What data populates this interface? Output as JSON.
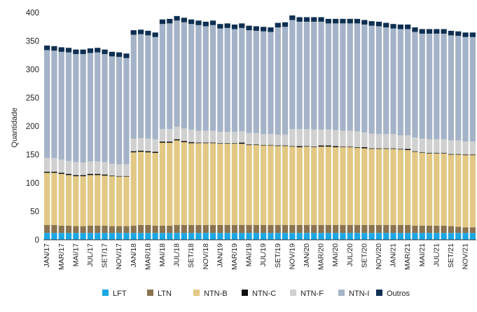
{
  "chart_data": {
    "type": "bar",
    "stacked": true,
    "title": "",
    "xlabel": "",
    "ylabel": "Quantidade",
    "ylim": [
      0,
      400
    ],
    "yticks": [
      0,
      50,
      100,
      150,
      200,
      250,
      300,
      350,
      400
    ],
    "grid": false,
    "legend_position": "bottom",
    "categories": [
      "JAN/17",
      "FEV/17",
      "MAR/17",
      "ABR/17",
      "MAI/17",
      "JUN/17",
      "JUL/17",
      "AGO/17",
      "SET/17",
      "OUT/17",
      "NOV/17",
      "DEZ/17",
      "JAN/18",
      "FEV/18",
      "MAR/18",
      "ABR/18",
      "MAI/18",
      "JUN/18",
      "JUL/18",
      "AGO/18",
      "SET/18",
      "OUT/18",
      "NOV/18",
      "DEZ/18",
      "JAN/19",
      "FEV/19",
      "MAR/19",
      "ABR/19",
      "MAI/19",
      "JUN/19",
      "JUL/19",
      "AGO/19",
      "SET/19",
      "OUT/19",
      "NOV/19",
      "DEZ/19",
      "JAN/20",
      "FEV/20",
      "MAR/20",
      "ABR/20",
      "MAI/20",
      "JUN/20",
      "JUL/20",
      "AGO/20",
      "SET/20",
      "OUT/20",
      "NOV/20",
      "DEZ/20",
      "JAN/21",
      "FEV/21",
      "MAR/21",
      "ABR/21",
      "MAI/21",
      "JUN/21",
      "JUL/21",
      "AGO/21",
      "SET/21",
      "OUT/21",
      "NOV/21",
      "DEZ/21"
    ],
    "visible_x_labels": [
      "JAN/17",
      "MAR/17",
      "MAI/17",
      "JUL/17",
      "SET/17",
      "NOV/17",
      "JAN/18",
      "MAR/18",
      "MAI/18",
      "JUL/18",
      "SET/18",
      "NOV/18",
      "JAN/19",
      "MAR/19",
      "MAI/19",
      "JUL/19",
      "SET/19",
      "NOV/19",
      "JAN/20",
      "MAR/20",
      "MAI/20",
      "JUL/20",
      "SET/20",
      "NOV/20",
      "JAN/21",
      "MAR/21",
      "MAI/21",
      "JUL/21",
      "SET/21",
      "NOV/21"
    ],
    "series": [
      {
        "name": "LFT",
        "color": "#1aa7e6",
        "values": [
          12,
          12,
          12,
          12,
          12,
          12,
          12,
          12,
          12,
          12,
          12,
          12,
          12,
          12,
          12,
          12,
          12,
          12,
          12,
          12,
          12,
          12,
          12,
          12,
          12,
          12,
          12,
          12,
          12,
          12,
          12,
          12,
          12,
          12,
          12,
          12,
          12,
          12,
          12,
          12,
          12,
          12,
          12,
          12,
          12,
          12,
          12,
          12,
          12,
          12,
          12,
          12,
          12,
          12,
          12,
          12,
          12,
          12,
          12,
          12
        ]
      },
      {
        "name": "LTN",
        "color": "#8a7350",
        "values": [
          14,
          14,
          13,
          13,
          12,
          12,
          13,
          13,
          13,
          12,
          12,
          12,
          13,
          14,
          14,
          13,
          13,
          13,
          14,
          14,
          14,
          14,
          14,
          14,
          14,
          14,
          14,
          14,
          14,
          14,
          14,
          14,
          14,
          14,
          14,
          14,
          14,
          14,
          14,
          14,
          14,
          14,
          14,
          14,
          14,
          14,
          14,
          14,
          14,
          14,
          14,
          13,
          13,
          13,
          13,
          13,
          12,
          11,
          10,
          10
        ]
      },
      {
        "name": "NTN-B",
        "color": "#e2c884",
        "values": [
          92,
          92,
          91,
          89,
          88,
          88,
          89,
          89,
          88,
          88,
          87,
          87,
          129,
          129,
          128,
          128,
          146,
          146,
          149,
          146,
          144,
          144,
          144,
          144,
          143,
          143,
          143,
          143,
          141,
          141,
          140,
          140,
          139,
          139,
          138,
          137,
          138,
          137,
          138,
          138,
          137,
          137,
          137,
          136,
          135,
          134,
          134,
          134,
          134,
          133,
          132,
          130,
          128,
          127,
          127,
          127,
          126,
          127,
          127,
          127
        ]
      },
      {
        "name": "NTN-C",
        "color": "#111111",
        "values": [
          2,
          2,
          2,
          2,
          2,
          2,
          2,
          2,
          2,
          1,
          1,
          1,
          2,
          2,
          2,
          2,
          2,
          2,
          2,
          2,
          2,
          1,
          1,
          1,
          1,
          1,
          1,
          2,
          1,
          1,
          1,
          1,
          1,
          1,
          1,
          2,
          1,
          1,
          2,
          2,
          2,
          1,
          1,
          1,
          2,
          1,
          1,
          1,
          1,
          1,
          2,
          1,
          1,
          1,
          1,
          1,
          1,
          1,
          1,
          1
        ]
      },
      {
        "name": "NTN-F",
        "color": "#d0d0d0",
        "values": [
          24,
          24,
          23,
          23,
          23,
          22,
          22,
          22,
          22,
          21,
          21,
          21,
          22,
          22,
          22,
          22,
          22,
          22,
          22,
          22,
          22,
          21,
          21,
          21,
          20,
          20,
          20,
          20,
          20,
          20,
          19,
          19,
          19,
          19,
          30,
          30,
          30,
          30,
          28,
          28,
          28,
          28,
          28,
          28,
          26,
          26,
          25,
          25,
          25,
          24,
          24,
          24,
          24,
          24,
          24,
          24,
          24,
          24,
          23,
          23
        ]
      },
      {
        "name": "NTN-I",
        "color": "#a4b3c7",
        "values": [
          190,
          189,
          190,
          191,
          190,
          191,
          191,
          192,
          190,
          189,
          189,
          187,
          183,
          183,
          182,
          180,
          185,
          186,
          187,
          187,
          186,
          186,
          184,
          186,
          182,
          183,
          181,
          182,
          181,
          180,
          181,
          180,
          189,
          190,
          192,
          189,
          189,
          190,
          190,
          187,
          188,
          189,
          189,
          190,
          190,
          190,
          190,
          188,
          186,
          187,
          187,
          186,
          185,
          186,
          186,
          186,
          185,
          184,
          184,
          184
        ]
      },
      {
        "name": "Outros",
        "color": "#0e2f52",
        "values": [
          8,
          8,
          8,
          8,
          8,
          8,
          8,
          8,
          8,
          8,
          8,
          8,
          8,
          8,
          8,
          8,
          8,
          8,
          8,
          8,
          8,
          8,
          8,
          8,
          8,
          8,
          8,
          8,
          8,
          8,
          8,
          8,
          8,
          8,
          8,
          8,
          8,
          8,
          8,
          8,
          8,
          8,
          8,
          8,
          8,
          8,
          8,
          8,
          8,
          8,
          8,
          8,
          8,
          8,
          8,
          8,
          8,
          8,
          8,
          8
        ]
      }
    ]
  }
}
